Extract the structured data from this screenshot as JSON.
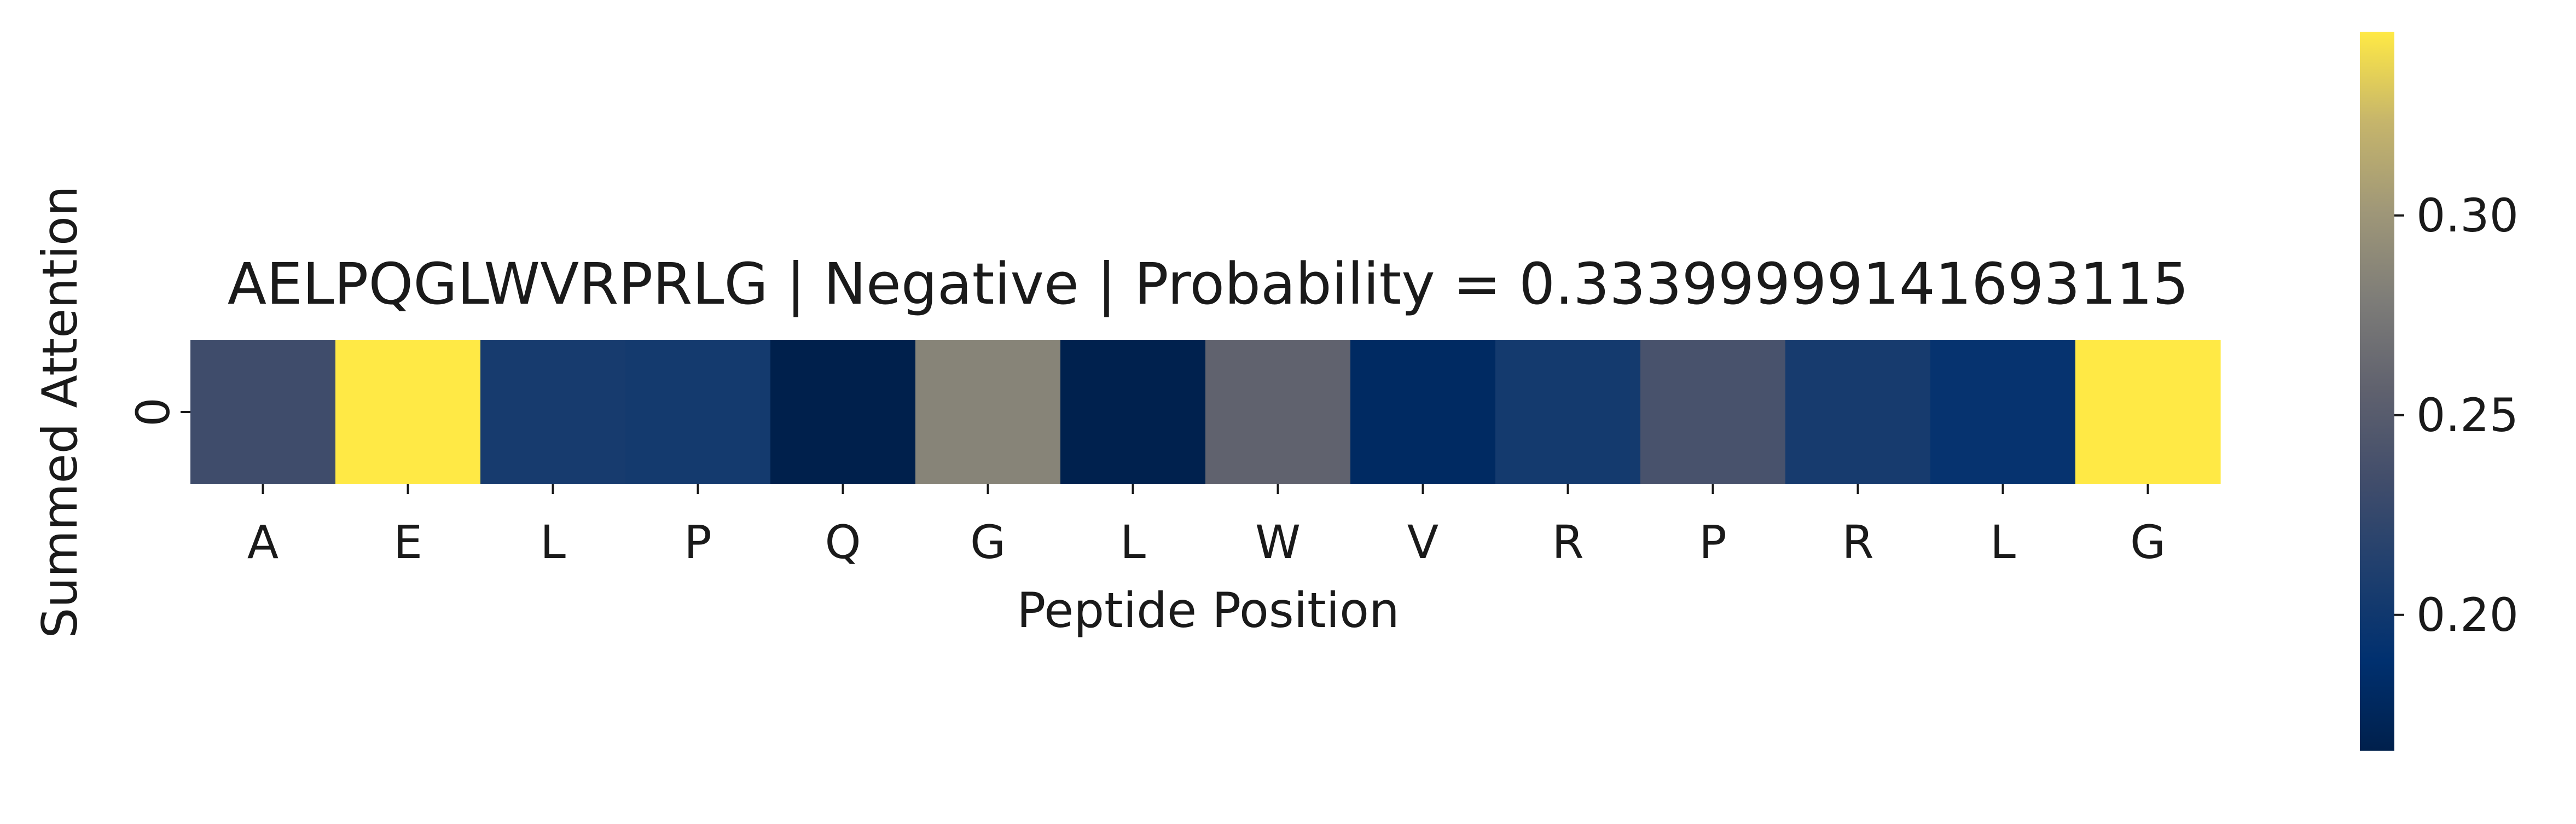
{
  "chart_data": {
    "type": "heatmap",
    "title": "AELPQGLWVRPRLG | Negative | Probability = 0.33399999141693115",
    "xlabel": "Peptide Position",
    "ylabel": "Summed Attention",
    "x_categories": [
      "A",
      "E",
      "L",
      "P",
      "Q",
      "G",
      "L",
      "W",
      "V",
      "R",
      "P",
      "R",
      "L",
      "G"
    ],
    "y_categories": [
      "0"
    ],
    "values": [
      [
        0.232,
        0.346,
        0.205,
        0.203,
        0.166,
        0.285,
        0.167,
        0.257,
        0.18,
        0.203,
        0.239,
        0.205,
        0.193,
        0.346
      ]
    ],
    "colormap": "cividis",
    "colorbar": {
      "range": [
        0.166,
        0.346
      ],
      "ticks": [
        0.2,
        0.25,
        0.3
      ],
      "tick_labels": [
        "0.20",
        "0.25",
        "0.30"
      ]
    }
  }
}
